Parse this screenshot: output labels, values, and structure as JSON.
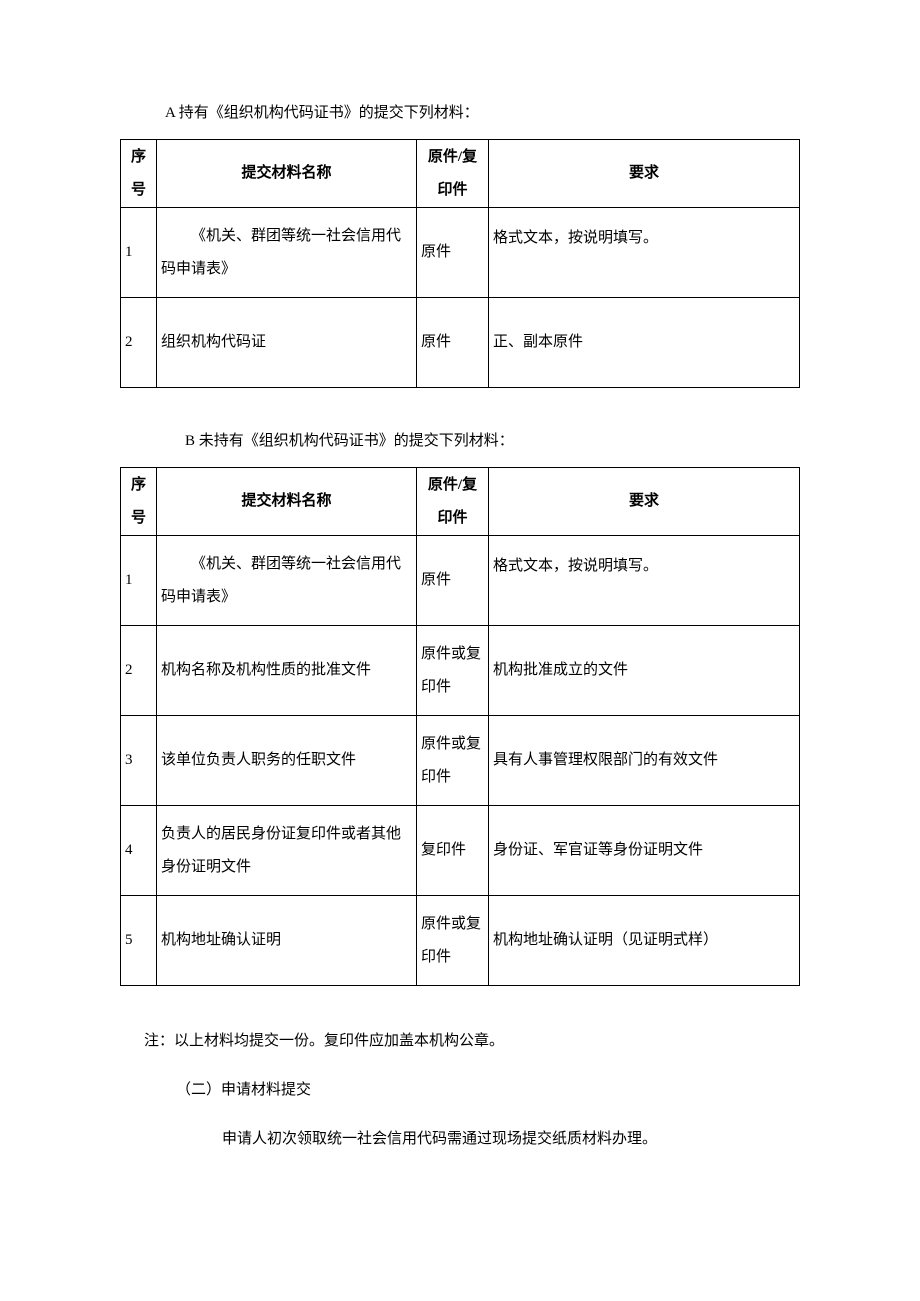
{
  "sectionA": {
    "heading": "A 持有《组织机构代码证书》的提交下列材料：",
    "columns": [
      "序号",
      "提交材料名称",
      "原件/复印件",
      "要求"
    ],
    "rows": [
      {
        "seq": "1",
        "name": "《机关、群团等统一社会信用代码申请表》",
        "type": "原件",
        "req": "格式文本，按说明填写。"
      },
      {
        "seq": "2",
        "name": "组织机构代码证",
        "type": "原件",
        "req": "正、副本原件"
      }
    ]
  },
  "sectionB": {
    "heading": "B 未持有《组织机构代码证书》的提交下列材料：",
    "columns": [
      "序号",
      "提交材料名称",
      "原件/复印件",
      "要求"
    ],
    "rows": [
      {
        "seq": "1",
        "name": "《机关、群团等统一社会信用代码申请表》",
        "type": "原件",
        "req": "格式文本，按说明填写。"
      },
      {
        "seq": "2",
        "name": "机构名称及机构性质的批准文件",
        "type": "原件或复印件",
        "req": "机构批准成立的文件"
      },
      {
        "seq": "3",
        "name": "该单位负责人职务的任职文件",
        "type": "原件或复印件",
        "req": "具有人事管理权限部门的有效文件"
      },
      {
        "seq": "4",
        "name": "负责人的居民身份证复印件或者其他身份证明文件",
        "type": "复印件",
        "req": "身份证、军官证等身份证明文件"
      },
      {
        "seq": "5",
        "name": "机构地址确认证明",
        "type": "原件或复印件",
        "req": "机构地址确认证明（见证明式样）"
      }
    ]
  },
  "note": "注：以上材料均提交一份。复印件应加盖本机构公章。",
  "subsection": "（二）申请材料提交",
  "body": "申请人初次领取统一社会信用代码需通过现场提交纸质材料办理。",
  "colors": {
    "text": "#000000",
    "border": "#000000",
    "background": "#ffffff"
  },
  "typography": {
    "base_fontsize": 15,
    "font_family": "SimSun"
  }
}
